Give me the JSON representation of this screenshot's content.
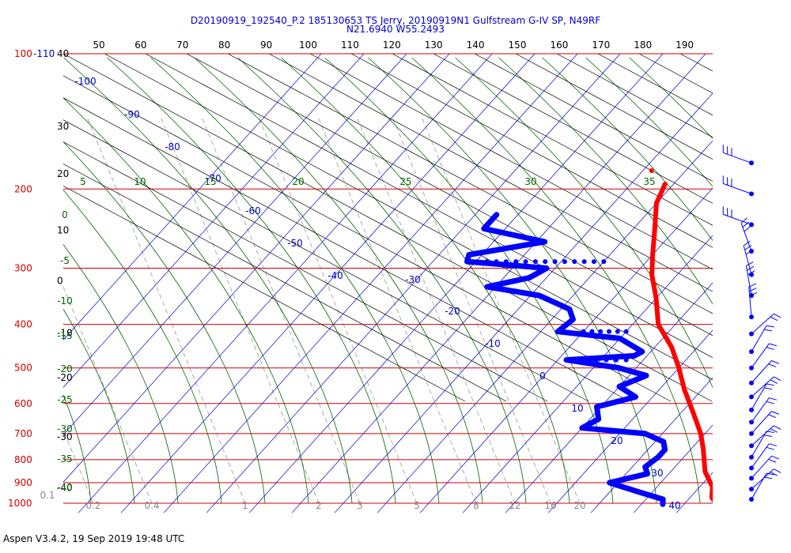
{
  "title": {
    "line1": "D20190919_192540_P.2 185130653 TS Jerry, 20190919N1 Gulfstream G-IV SP, N49RF",
    "line2": "N21.6940 W55.2493"
  },
  "footer": "Aspen V3.4.2, 19 Sep 2019  19:48 UTC",
  "colors": {
    "isobar": "#d00000",
    "isotherm": "#0000c8",
    "dry_adiabat": "#000000",
    "moist_adiabat": "#006400",
    "mixing_ratio": "#8a8a8a",
    "temperature": "#ff0000",
    "dewpoint": "#0000ff"
  },
  "chart_data": {
    "type": "skew-t log-p sounding",
    "y_axis": {
      "scale": "log",
      "range_hpa": [
        100,
        1000
      ],
      "pressure_labels": [
        "100",
        "200",
        "300",
        "400",
        "500",
        "600",
        "700",
        "800",
        "900",
        "1000"
      ],
      "top_prefix": "100-110",
      "height_labels": [
        {
          "p": 100,
          "label": "40"
        },
        {
          "p": 145,
          "label": "30"
        },
        {
          "p": 185,
          "label": "20"
        },
        {
          "p": 247,
          "label": "10"
        },
        {
          "p": 320,
          "label": "0"
        },
        {
          "p": 418,
          "label": "-10"
        },
        {
          "p": 526,
          "label": "-20"
        },
        {
          "p": 712,
          "label": "-30"
        },
        {
          "p": 925,
          "label": "-40"
        }
      ]
    },
    "top_axis_labels": [
      "50",
      "60",
      "70",
      "80",
      "90",
      "100",
      "110",
      "120",
      "130",
      "140",
      "150",
      "160",
      "170",
      "180",
      "190"
    ],
    "isotherm_labels": [
      "-100",
      "-90",
      "-80",
      "-70",
      "-60",
      "-50",
      "-40",
      "-30",
      "-20",
      "-10",
      "0",
      "10",
      "20",
      "30",
      "40"
    ],
    "moist_adiabat_labels": [
      "5",
      "10",
      "15",
      "20",
      "25",
      "30",
      "35"
    ],
    "left_moist_labels": [
      "0",
      "-5",
      "-10",
      "-15",
      "-20",
      "-25",
      "-30",
      "-35",
      "-40"
    ],
    "mixing_ratio_labels": [
      "0.1",
      "0.2",
      "0.4",
      "1",
      "2",
      "3",
      "5",
      "8",
      "12",
      "16",
      "20"
    ],
    "temperature_profile": [
      {
        "p": 195,
        "t": -52
      },
      {
        "p": 215,
        "t": -50
      },
      {
        "p": 245,
        "t": -45
      },
      {
        "p": 280,
        "t": -40
      },
      {
        "p": 310,
        "t": -36
      },
      {
        "p": 350,
        "t": -30
      },
      {
        "p": 400,
        "t": -24
      },
      {
        "p": 450,
        "t": -16
      },
      {
        "p": 500,
        "t": -10
      },
      {
        "p": 560,
        "t": -4
      },
      {
        "p": 620,
        "t": 2
      },
      {
        "p": 700,
        "t": 9
      },
      {
        "p": 760,
        "t": 13
      },
      {
        "p": 850,
        "t": 18
      },
      {
        "p": 920,
        "t": 23
      },
      {
        "p": 970,
        "t": 25
      },
      {
        "p": 1010,
        "t": 28
      }
    ],
    "temperature_isolated_point": {
      "p": 182,
      "t": -58
    },
    "dewpoint_profile": [
      {
        "p": 228,
        "t": -85
      },
      {
        "p": 245,
        "t": -85
      },
      {
        "p": 262,
        "t": -68
      },
      {
        "p": 280,
        "t": -83
      },
      {
        "p": 290,
        "t": -82
      },
      {
        "p": 300,
        "t": -62
      },
      {
        "p": 315,
        "t": -64
      },
      {
        "p": 330,
        "t": -72
      },
      {
        "p": 345,
        "t": -58
      },
      {
        "p": 370,
        "t": -48
      },
      {
        "p": 390,
        "t": -45
      },
      {
        "p": 415,
        "t": -46
      },
      {
        "p": 430,
        "t": -30
      },
      {
        "p": 460,
        "t": -22
      },
      {
        "p": 470,
        "t": -23
      },
      {
        "p": 480,
        "t": -38
      },
      {
        "p": 500,
        "t": -24
      },
      {
        "p": 520,
        "t": -16
      },
      {
        "p": 550,
        "t": -20
      },
      {
        "p": 580,
        "t": -14
      },
      {
        "p": 610,
        "t": -21
      },
      {
        "p": 650,
        "t": -18
      },
      {
        "p": 680,
        "t": -20
      },
      {
        "p": 700,
        "t": -4
      },
      {
        "p": 730,
        "t": 2
      },
      {
        "p": 760,
        "t": 4
      },
      {
        "p": 790,
        "t": 4
      },
      {
        "p": 830,
        "t": 3
      },
      {
        "p": 860,
        "t": 5
      },
      {
        "p": 900,
        "t": -2
      },
      {
        "p": 940,
        "t": 6
      },
      {
        "p": 980,
        "t": 14
      },
      {
        "p": 1005,
        "t": 15
      }
    ],
    "dewpoint_dotted_segments": [
      {
        "p": 290,
        "t0": -82,
        "t1": -50
      },
      {
        "p": 415,
        "t0": -40,
        "t1": -30
      },
      {
        "p": 480,
        "t0": -38,
        "t1": -24
      }
    ],
    "wind_levels_hpa": [
      175,
      205,
      240,
      275,
      310,
      345,
      385,
      420,
      460,
      500,
      540,
      580,
      620,
      660,
      700,
      745,
      790,
      835,
      880,
      930,
      980
    ]
  }
}
